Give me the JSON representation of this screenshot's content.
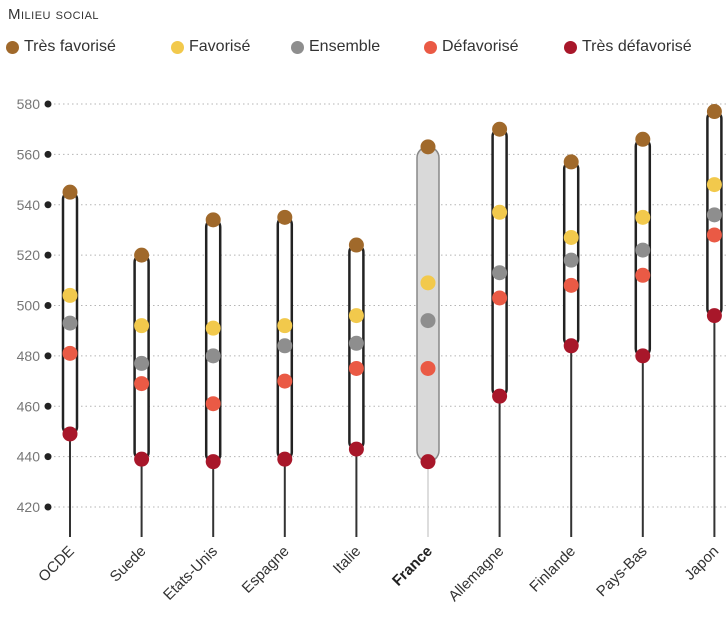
{
  "chart_data": {
    "type": "scatter",
    "title": "Milieu social",
    "legend": [
      {
        "name": "Très favorisé",
        "color": "#a0692b"
      },
      {
        "name": "Favorisé",
        "color": "#f2c94c"
      },
      {
        "name": "Ensemble",
        "color": "#8e8e8e"
      },
      {
        "name": "Défavorisé",
        "color": "#ea5a45"
      },
      {
        "name": "Très défavorisé",
        "color": "#a8172a"
      }
    ],
    "categories": [
      "OCDE",
      "Suede",
      "Etats-Unis",
      "Espagne",
      "Italie",
      "France",
      "Allemagne",
      "Finlande",
      "Pays-Bas",
      "Japon"
    ],
    "highlight": "France",
    "yticks": [
      420,
      440,
      460,
      480,
      500,
      520,
      540,
      560,
      580
    ],
    "ylim": [
      412,
      582
    ],
    "series": [
      {
        "name": "Très favorisé",
        "values": [
          545,
          520,
          534,
          535,
          524,
          563,
          570,
          557,
          566,
          577
        ]
      },
      {
        "name": "Favorisé",
        "values": [
          504,
          492,
          491,
          492,
          496,
          509,
          537,
          527,
          535,
          548
        ]
      },
      {
        "name": "Ensemble",
        "values": [
          493,
          477,
          480,
          484,
          485,
          494,
          513,
          518,
          522,
          536
        ]
      },
      {
        "name": "Défavorisé",
        "values": [
          481,
          469,
          461,
          470,
          475,
          475,
          503,
          508,
          512,
          528
        ]
      },
      {
        "name": "Très défavorisé",
        "values": [
          449,
          439,
          438,
          439,
          443,
          438,
          464,
          484,
          480,
          496
        ]
      }
    ]
  }
}
